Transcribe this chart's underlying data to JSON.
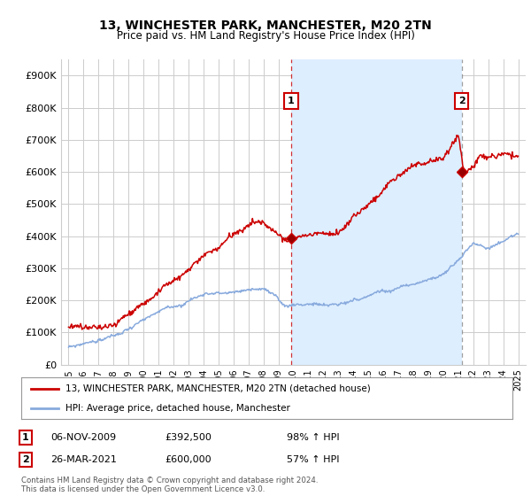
{
  "title": "13, WINCHESTER PARK, MANCHESTER, M20 2TN",
  "subtitle": "Price paid vs. HM Land Registry's House Price Index (HPI)",
  "ylim": [
    0,
    950000
  ],
  "yticks": [
    0,
    100000,
    200000,
    300000,
    400000,
    500000,
    600000,
    700000,
    800000,
    900000
  ],
  "ytick_labels": [
    "£0",
    "£100K",
    "£200K",
    "£300K",
    "£400K",
    "£500K",
    "£600K",
    "£700K",
    "£800K",
    "£900K"
  ],
  "background_color": "#ffffff",
  "plot_bg_color": "#ffffff",
  "grid_color": "#cccccc",
  "shade_color": "#ddeeff",
  "sale1_year": 2009.85,
  "sale1_price": 392500,
  "sale2_year": 2021.23,
  "sale2_price": 600000,
  "property_color": "#cc0000",
  "hpi_color": "#88aadd",
  "legend_property": "13, WINCHESTER PARK, MANCHESTER, M20 2TN (detached house)",
  "legend_hpi": "HPI: Average price, detached house, Manchester",
  "annotation1_date": "06-NOV-2009",
  "annotation1_price": "£392,500",
  "annotation1_pct": "98% ↑ HPI",
  "annotation2_date": "26-MAR-2021",
  "annotation2_price": "£600,000",
  "annotation2_pct": "57% ↑ HPI",
  "footer": "Contains HM Land Registry data © Crown copyright and database right 2024.\nThis data is licensed under the Open Government Licence v3.0.",
  "xmin": 1994.5,
  "xmax": 2025.5
}
